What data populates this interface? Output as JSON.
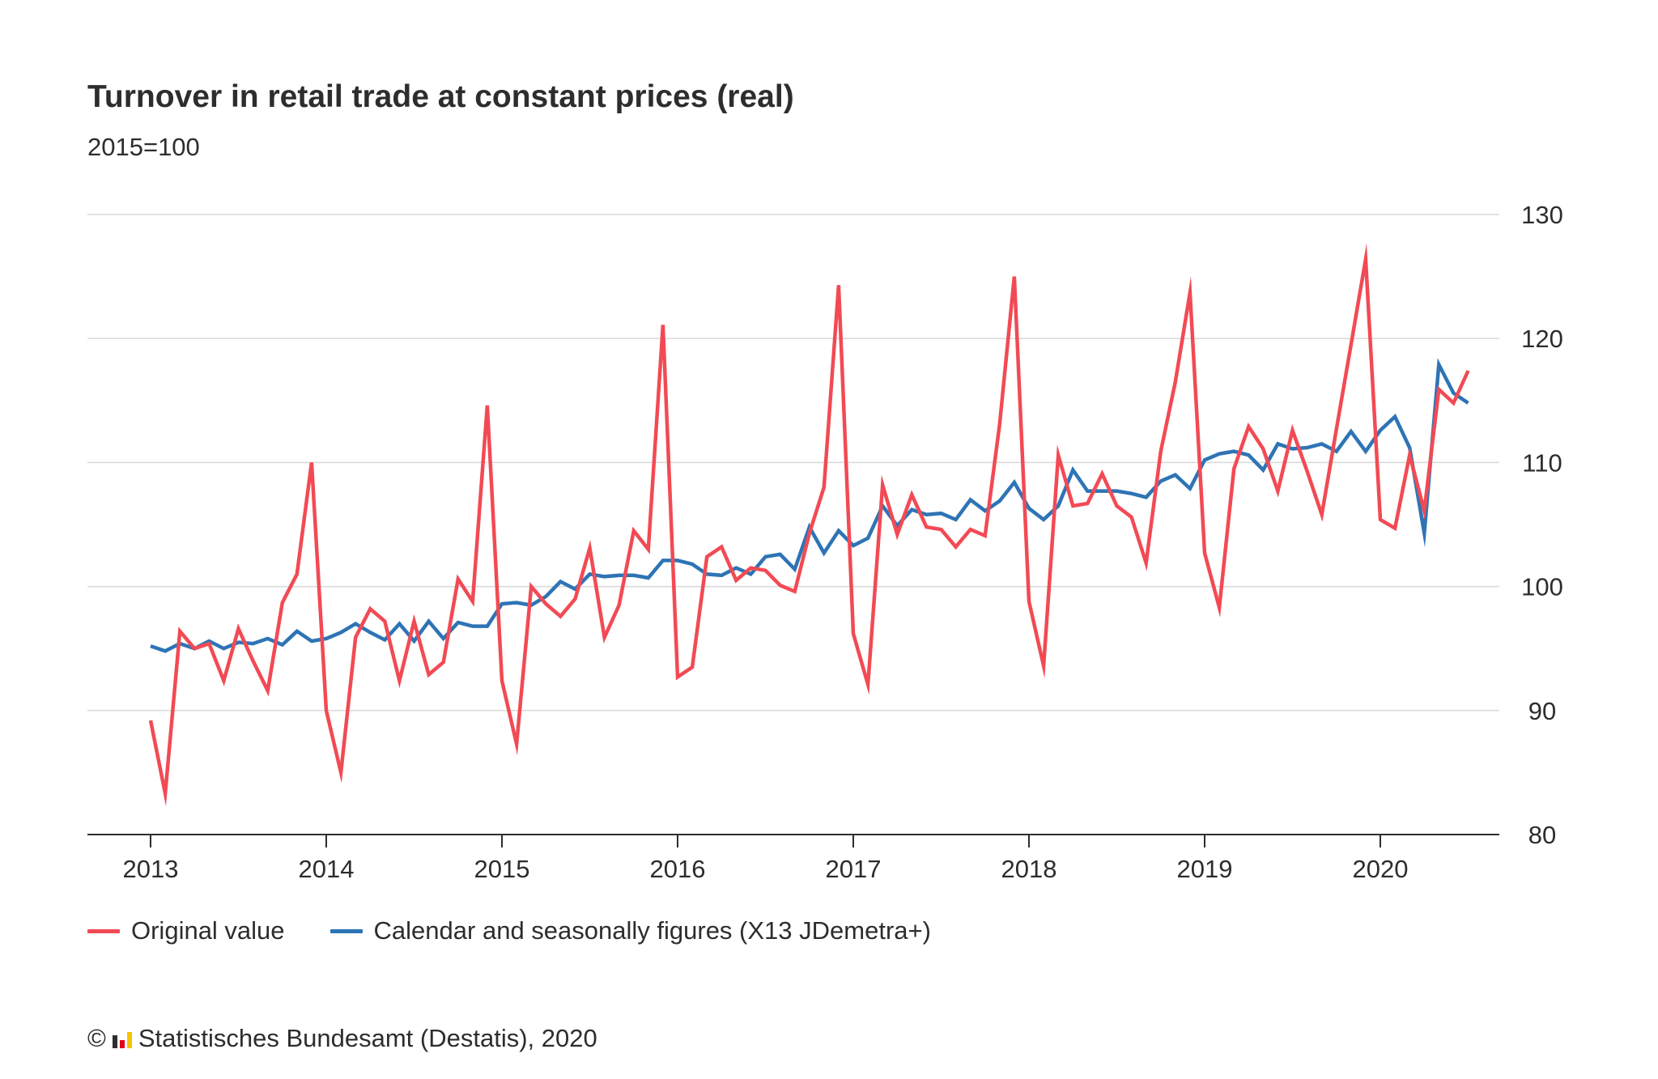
{
  "title": "Turnover in retail trade at constant prices (real)",
  "subtitle": "2015=100",
  "colors": {
    "original": "#f24a54",
    "adjusted": "#2e74b5",
    "grid": "#d9d9d9",
    "axis": "#2d2d2d"
  },
  "legend": {
    "original": "Original value",
    "adjusted": "Calendar and seasonally figures (X13 JDemetra+)"
  },
  "footer": {
    "copyright_symbol": "©",
    "logo_icon": "destatis-logo-icon",
    "text": "Statistisches Bundesamt (Destatis), 2020"
  },
  "chart_data": {
    "type": "line",
    "x_ticks": [
      "2013",
      "2014",
      "2015",
      "2016",
      "2017",
      "2018",
      "2019",
      "2020"
    ],
    "y_ticks": [
      80,
      90,
      100,
      110,
      120,
      130
    ],
    "ylim": [
      80,
      130
    ],
    "xlim": [
      "2012-08",
      "2020-10"
    ],
    "y_axis_position": "right",
    "grid": true,
    "legend_position": "bottom-left",
    "x": [
      "2013-01",
      "2013-02",
      "2013-03",
      "2013-04",
      "2013-05",
      "2013-06",
      "2013-07",
      "2013-08",
      "2013-09",
      "2013-10",
      "2013-11",
      "2013-12",
      "2014-01",
      "2014-02",
      "2014-03",
      "2014-04",
      "2014-05",
      "2014-06",
      "2014-07",
      "2014-08",
      "2014-09",
      "2014-10",
      "2014-11",
      "2014-12",
      "2015-01",
      "2015-02",
      "2015-03",
      "2015-04",
      "2015-05",
      "2015-06",
      "2015-07",
      "2015-08",
      "2015-09",
      "2015-10",
      "2015-11",
      "2015-12",
      "2016-01",
      "2016-02",
      "2016-03",
      "2016-04",
      "2016-05",
      "2016-06",
      "2016-07",
      "2016-08",
      "2016-09",
      "2016-10",
      "2016-11",
      "2016-12",
      "2017-01",
      "2017-02",
      "2017-03",
      "2017-04",
      "2017-05",
      "2017-06",
      "2017-07",
      "2017-08",
      "2017-09",
      "2017-10",
      "2017-11",
      "2017-12",
      "2018-01",
      "2018-02",
      "2018-03",
      "2018-04",
      "2018-05",
      "2018-06",
      "2018-07",
      "2018-08",
      "2018-09",
      "2018-10",
      "2018-11",
      "2018-12",
      "2019-01",
      "2019-02",
      "2019-03",
      "2019-04",
      "2019-05",
      "2019-06",
      "2019-07",
      "2019-08",
      "2019-09",
      "2019-10",
      "2019-11",
      "2019-12",
      "2020-01",
      "2020-02",
      "2020-03",
      "2020-04",
      "2020-05",
      "2020-06",
      "2020-07"
    ],
    "series": [
      {
        "name": "Original value",
        "color": "#f24a54",
        "values": [
          89.2,
          83.3,
          96.4,
          95.0,
          95.4,
          92.4,
          96.6,
          94.0,
          91.6,
          98.7,
          101.0,
          110.0,
          90.0,
          85.0,
          95.9,
          98.2,
          97.2,
          92.4,
          97.2,
          92.9,
          93.9,
          100.6,
          98.8,
          114.6,
          92.4,
          87.3,
          100.0,
          98.6,
          97.6,
          99.0,
          103.1,
          95.9,
          98.5,
          104.5,
          103.0,
          121.1,
          92.7,
          93.5,
          102.4,
          103.2,
          100.5,
          101.5,
          101.3,
          100.1,
          99.6,
          104.3,
          108.0,
          124.3,
          96.2,
          92.1,
          108.2,
          104.2,
          107.4,
          104.8,
          104.6,
          103.2,
          104.6,
          104.1,
          113.1,
          125.0,
          98.8,
          93.6,
          110.6,
          106.5,
          106.7,
          109.1,
          106.5,
          105.6,
          101.9,
          110.9,
          116.5,
          123.7,
          102.7,
          98.3,
          109.5,
          112.9,
          111.1,
          107.7,
          112.6,
          109.3,
          105.8,
          112.7,
          119.5,
          126.4,
          105.4,
          104.7,
          110.6,
          106.1,
          115.9,
          114.8,
          117.4
        ]
      },
      {
        "name": "Calendar and seasonally figures (X13 JDemetra+)",
        "color": "#2e74b5",
        "values": [
          95.2,
          94.8,
          95.4,
          95.0,
          95.6,
          95.0,
          95.5,
          95.4,
          95.8,
          95.3,
          96.4,
          95.6,
          95.8,
          96.3,
          97.0,
          96.3,
          95.7,
          97.0,
          95.6,
          97.2,
          95.8,
          97.1,
          96.8,
          96.8,
          98.6,
          98.7,
          98.5,
          99.2,
          100.4,
          99.8,
          101.0,
          100.8,
          100.9,
          100.9,
          100.7,
          102.1,
          102.1,
          101.8,
          101.0,
          100.9,
          101.5,
          101.0,
          102.4,
          102.6,
          101.4,
          104.8,
          102.7,
          104.5,
          103.3,
          103.9,
          106.5,
          104.9,
          106.2,
          105.8,
          105.9,
          105.4,
          107.0,
          106.1,
          106.9,
          108.4,
          106.3,
          105.4,
          106.5,
          109.4,
          107.7,
          107.7,
          107.7,
          107.5,
          107.2,
          108.5,
          109.0,
          107.9,
          110.2,
          110.7,
          110.9,
          110.6,
          109.4,
          111.5,
          111.1,
          111.2,
          111.5,
          110.9,
          112.5,
          110.9,
          112.6,
          113.7,
          111.2,
          104.3,
          117.9,
          115.6,
          114.8
        ]
      }
    ]
  }
}
